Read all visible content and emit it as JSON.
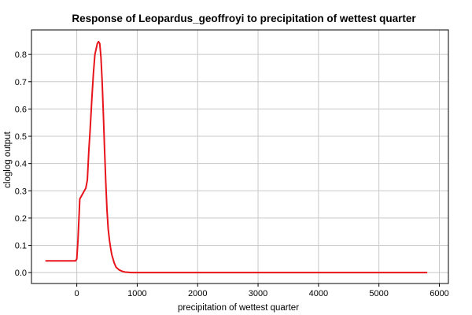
{
  "chart_data": {
    "type": "line",
    "title": "Response of Leopardus_geoffroyi to precipitation of wettest quarter",
    "xlabel": "precipitation of wettest quarter",
    "ylabel": "cloglog output",
    "xlim": [
      -750,
      6150
    ],
    "ylim": [
      -0.04,
      0.89
    ],
    "xticks": [
      0,
      1000,
      2000,
      3000,
      4000,
      5000,
      6000
    ],
    "yticks": [
      0.0,
      0.1,
      0.2,
      0.3,
      0.4,
      0.5,
      0.6,
      0.7,
      0.8
    ],
    "tick_format": {
      "x": 0,
      "y": 1
    },
    "grid": true,
    "legend": "none",
    "series": [
      {
        "color": "#e8141b",
        "x": [
          -520,
          -100,
          -20,
          0,
          20,
          50,
          100,
          150,
          175,
          200,
          220,
          250,
          275,
          300,
          320,
          340,
          360,
          380,
          400,
          420,
          440,
          460,
          480,
          500,
          520,
          540,
          560,
          580,
          600,
          620,
          650,
          700,
          750,
          800,
          850,
          900,
          1000,
          2000,
          3000,
          4000,
          5000,
          5800
        ],
        "y": [
          0.043,
          0.043,
          0.043,
          0.05,
          0.12,
          0.27,
          0.29,
          0.31,
          0.34,
          0.45,
          0.52,
          0.64,
          0.73,
          0.8,
          0.82,
          0.84,
          0.847,
          0.84,
          0.79,
          0.7,
          0.58,
          0.45,
          0.33,
          0.23,
          0.16,
          0.12,
          0.09,
          0.065,
          0.05,
          0.035,
          0.02,
          0.01,
          0.005,
          0.002,
          0.001,
          0.0,
          0.0,
          0.0,
          0.0,
          0.0,
          0.0,
          0.0
        ]
      }
    ]
  }
}
